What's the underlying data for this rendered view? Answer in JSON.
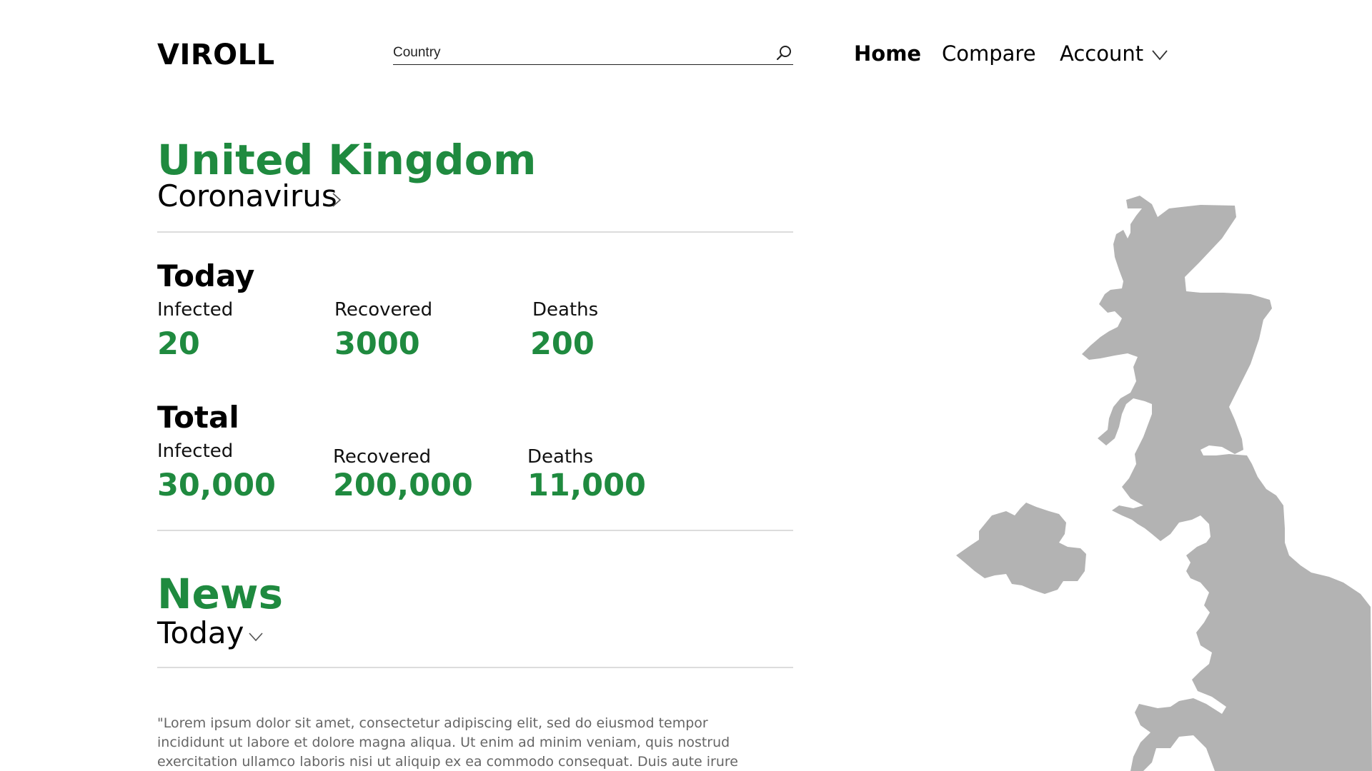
{
  "header": {
    "logo": "VIROLL",
    "search": {
      "placeholder": "Country",
      "value": ""
    },
    "nav": {
      "home": "Home",
      "compare": "Compare",
      "account": "Account"
    }
  },
  "country": {
    "name": "United Kingdom",
    "subtitle": "Coronavirus"
  },
  "today": {
    "title": "Today",
    "infected_label": "Infected",
    "infected_value": "20",
    "recovered_label": "Recovered",
    "recovered_value": "3000",
    "deaths_label": "Deaths",
    "deaths_value": "200"
  },
  "total": {
    "title": "Total",
    "infected_label": "Infected",
    "infected_value": "30,000",
    "recovered_label": "Recovered",
    "recovered_value": "200,000",
    "deaths_label": "Deaths",
    "deaths_value": "11,000"
  },
  "news": {
    "title": "News",
    "filter": "Today",
    "text": "\"Lorem ipsum dolor sit amet, consectetur adipiscing elit, sed do eiusmod tempor incididunt ut labore et dolore magna aliqua. Ut enim ad minim veniam, quis nostrud exercitation ullamco laboris nisi ut aliquip ex ea commodo consequat. Duis aute irure dolor in reprehenderit in"
  },
  "icons": {
    "search": "search-icon",
    "account_chevron": "chevron-down-icon",
    "subtitle_chevron": "chevron-right-icon",
    "news_chevron": "chevron-down-icon"
  },
  "colors": {
    "accent": "#1f8a3f",
    "map": "#b3b3b3",
    "divider": "#dcdcdc"
  }
}
